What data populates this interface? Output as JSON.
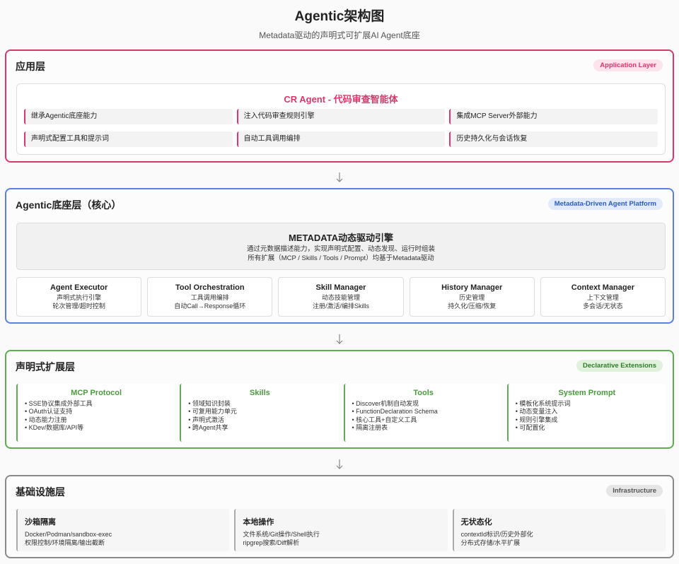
{
  "header": {
    "title": "Agentic架构图",
    "subtitle": "Metadata驱动的声明式可扩展AI Agent底座"
  },
  "layers": [
    {
      "title": "应用层",
      "badge": "Application Layer",
      "panel": {
        "title": "CR Agent - 代码审查智能体",
        "items": [
          "继承Agentic底座能力",
          "注入代码审查规则引擎",
          "集成MCP Server外部能力",
          "声明式配置工具和提示词",
          "自动工具调用编排",
          "历史持久化与会话恢复"
        ]
      }
    },
    {
      "title": "Agentic底座层（核心）",
      "badge": "Metadata-Driven Agent Platform",
      "engine": {
        "title": "METADATA动态驱动引擎",
        "lines": [
          "通过元数据描述能力，实现声明式配置、动态发现、运行时组装",
          "所有扩展（MCP / Skills / Tools / Prompt）均基于Metadata驱动"
        ]
      },
      "modules": [
        {
          "title": "Agent Executor",
          "lines": [
            "声明式执行引擎",
            "轮次管理/超时控制"
          ]
        },
        {
          "title": "Tool Orchestration",
          "lines": [
            "工具调用编排",
            "自动Call→Response循环"
          ]
        },
        {
          "title": "Skill Manager",
          "lines": [
            "动态技能管理",
            "注册/激活/编排Skills"
          ]
        },
        {
          "title": "History Manager",
          "lines": [
            "历史管理",
            "持久化/压缩/恢复"
          ]
        },
        {
          "title": "Context Manager",
          "lines": [
            "上下文管理",
            "多会话/无状态"
          ]
        }
      ]
    },
    {
      "title": "声明式扩展层",
      "badge": "Declarative Extensions",
      "cards": [
        {
          "title": "MCP Protocol",
          "items": [
            "SSE协议集成外部工具",
            "OAuth认证支持",
            "动态能力注册",
            "KDev/数据库/API等"
          ]
        },
        {
          "title": "Skills",
          "items": [
            "领域知识封装",
            "可复用能力单元",
            "声明式激活",
            "跨Agent共享"
          ]
        },
        {
          "title": "Tools",
          "items": [
            "Discover机制自动发现",
            "FunctionDeclaration Schema",
            "核心工具+自定义工具",
            "隔离注册表"
          ]
        },
        {
          "title": "System Prompt",
          "items": [
            "模板化系统提示词",
            "动态变量注入",
            "规则引擎集成",
            "可配置化"
          ]
        }
      ]
    },
    {
      "title": "基础设施层",
      "badge": "Infrastructure",
      "cards": [
        {
          "title": "沙箱隔离",
          "lines": [
            "Docker/Podman/sandbox-exec",
            "权限控制/环境隔离/输出截断"
          ]
        },
        {
          "title": "本地操作",
          "lines": [
            "文件系统/Git操作/Shell执行",
            "ripgrep搜索/Diff解析"
          ]
        },
        {
          "title": "无状态化",
          "lines": [
            "contextId标识/历史外部化",
            "分布式存储/水平扩展"
          ]
        }
      ]
    }
  ]
}
